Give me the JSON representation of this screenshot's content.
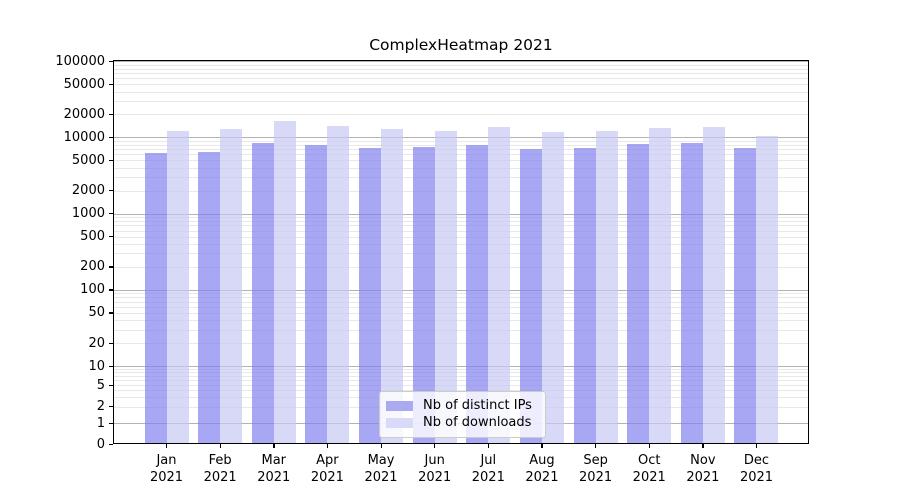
{
  "chart_data": {
    "type": "bar",
    "title": "ComplexHeatmap 2021",
    "categories": [
      "Jan 2021",
      "Feb 2021",
      "Mar 2021",
      "Apr 2021",
      "May 2021",
      "Jun 2021",
      "Jul 2021",
      "Aug 2021",
      "Sep 2021",
      "Oct 2021",
      "Nov 2021",
      "Dec 2021"
    ],
    "series": [
      {
        "name": "Nb of distinct IPs",
        "color": "#8282f0",
        "legend_color": "#aaaaf2",
        "values": [
          6200,
          6500,
          8400,
          7900,
          7200,
          7400,
          7900,
          7000,
          7200,
          8100,
          8400,
          7200
        ]
      },
      {
        "name": "Nb of downloads",
        "color": "#c8c8f4",
        "legend_color": "#d9d9f8",
        "values": [
          12100,
          12700,
          16400,
          14300,
          12900,
          12300,
          13500,
          11900,
          12200,
          13200,
          13600,
          10400
        ]
      }
    ],
    "bar_alpha": 0.7,
    "xlabel": "",
    "ylabel": "",
    "yaxis": {
      "scale": "log-like (symlog, 1-2-5 ticks)",
      "ticks": [
        0,
        1,
        2,
        5,
        10,
        20,
        50,
        100,
        200,
        500,
        1000,
        2000,
        5000,
        10000,
        20000,
        50000,
        100000
      ],
      "range": [
        0,
        100000
      ]
    },
    "grid": {
      "major_color": "#b3b3b3",
      "minor_color": "#e8e8e8",
      "major_at": "powers of 10",
      "minor_at": "integer mantissas 2-9 per decade"
    },
    "legend": {
      "position": "lower center"
    }
  }
}
